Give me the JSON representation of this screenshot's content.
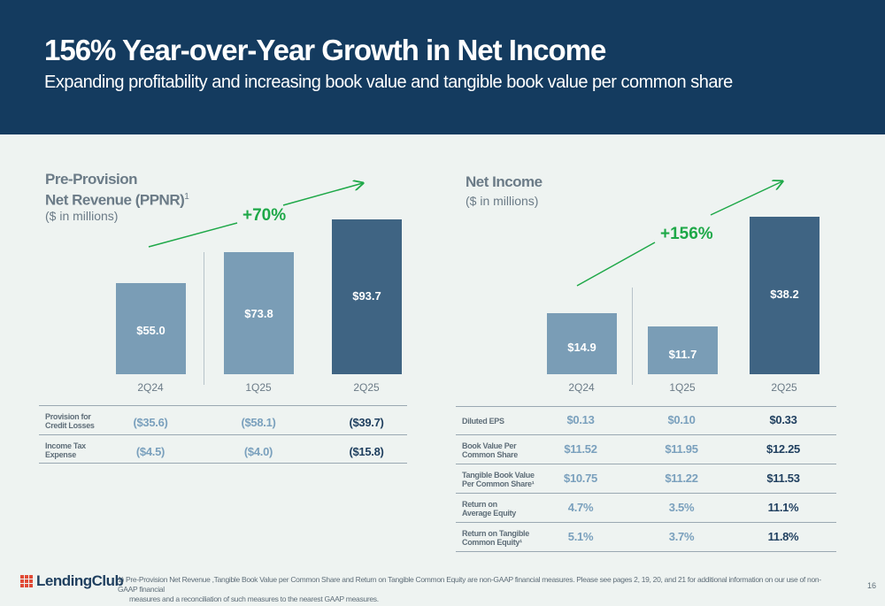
{
  "header": {
    "title": "156% Year-over-Year Growth in Net Income",
    "subtitle": "Expanding profitability and increasing book value and tangible book value per common share"
  },
  "left_panel": {
    "title_line1": "Pre-Provision",
    "title_line2": "Net Revenue (PPNR)",
    "title_sup": "1",
    "unit": "($ in millions)",
    "growth": "+70%",
    "rows": [
      {
        "label_line1": "Provision for",
        "label_line2": "Credit Losses",
        "values": [
          "($35.6)",
          "($58.1)",
          "($39.7)"
        ]
      },
      {
        "label_line1": "Income Tax",
        "label_line2": "Expense",
        "values": [
          "($4.5)",
          "($4.0)",
          "($15.8)"
        ]
      }
    ]
  },
  "right_panel": {
    "title": "Net Income",
    "unit": "($ in millions)",
    "growth": "+156%",
    "rows": [
      {
        "label_line1": "Diluted EPS",
        "label_line2": "",
        "values": [
          "$0.13",
          "$0.10",
          "$0.33"
        ]
      },
      {
        "label_line1": "Book Value Per",
        "label_line2": "Common Share",
        "values": [
          "$11.52",
          "$11.95",
          "$12.25"
        ]
      },
      {
        "label_line1": "Tangible Book Value",
        "label_line2": "Per Common Share¹",
        "values": [
          "$10.75",
          "$11.22",
          "$11.53"
        ]
      },
      {
        "label_line1": "Return on",
        "label_line2": "Average Equity",
        "values": [
          "4.7%",
          "3.5%",
          "11.1%"
        ]
      },
      {
        "label_line1": "Return on Tangible",
        "label_line2": "Common Equity¹",
        "values": [
          "5.1%",
          "3.7%",
          "11.8%"
        ]
      }
    ]
  },
  "chart_data": [
    {
      "type": "bar",
      "categories": [
        "2Q24",
        "1Q25",
        "2Q25"
      ],
      "values": [
        55.0,
        73.8,
        93.7
      ],
      "labels": [
        "$55.0",
        "$73.8",
        "$93.7"
      ],
      "colors": [
        "#7a9db6",
        "#7a9db6",
        "#3f6483"
      ],
      "ylim": [
        0,
        100
      ]
    },
    {
      "type": "bar",
      "categories": [
        "2Q24",
        "1Q25",
        "2Q25"
      ],
      "values": [
        14.9,
        11.7,
        38.2
      ],
      "labels": [
        "$14.9",
        "$11.7",
        "$38.2"
      ],
      "colors": [
        "#7a9db6",
        "#7a9db6",
        "#3f6483"
      ],
      "ylim": [
        0,
        40
      ]
    }
  ],
  "footer": {
    "logo": "LendingClub",
    "footnote_line1": "1)   Pre-Provision Net Revenue ,Tangible Book Value per Common Share and Return on Tangible Common Equity are non-GAAP financial measures. Please see pages 2, 19, 20, and 21 for additional information on our use of non-GAAP financial",
    "footnote_line2": "measures and a reconciliation of such measures to the nearest GAAP measures.",
    "page": "16"
  },
  "colors": {
    "header_bg": "#143b5f",
    "accent_green": "#1ea848",
    "bar_light": "#7a9db6",
    "bar_dark": "#3f6483",
    "page_bg": "#eef3f1"
  }
}
